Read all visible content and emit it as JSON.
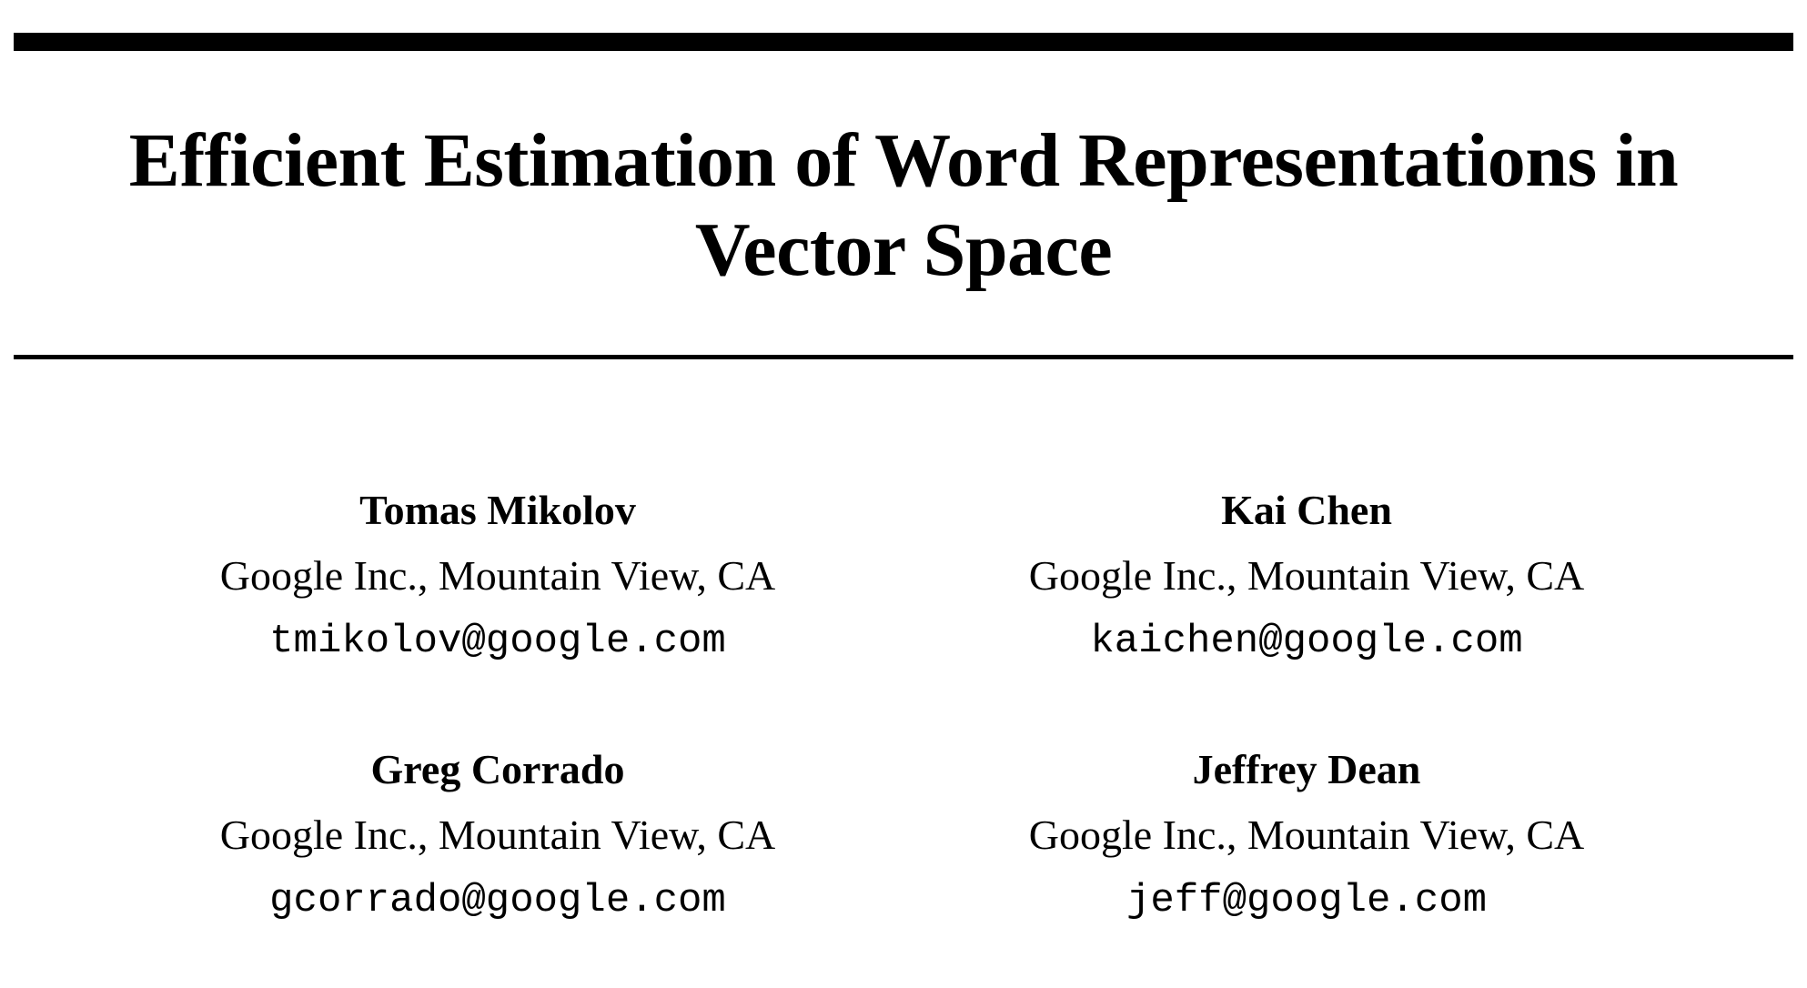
{
  "paper": {
    "title": "Efficient Estimation of Word Representations in Vector Space",
    "authors": [
      {
        "name": "Tomas Mikolov",
        "affiliation": "Google Inc., Mountain View, CA",
        "email": "tmikolov@google.com"
      },
      {
        "name": "Kai Chen",
        "affiliation": "Google Inc., Mountain View, CA",
        "email": "kaichen@google.com"
      },
      {
        "name": "Greg Corrado",
        "affiliation": "Google Inc., Mountain View, CA",
        "email": "gcorrado@google.com"
      },
      {
        "name": "Jeffrey Dean",
        "affiliation": "Google Inc., Mountain View, CA",
        "email": "jeff@google.com"
      }
    ]
  }
}
